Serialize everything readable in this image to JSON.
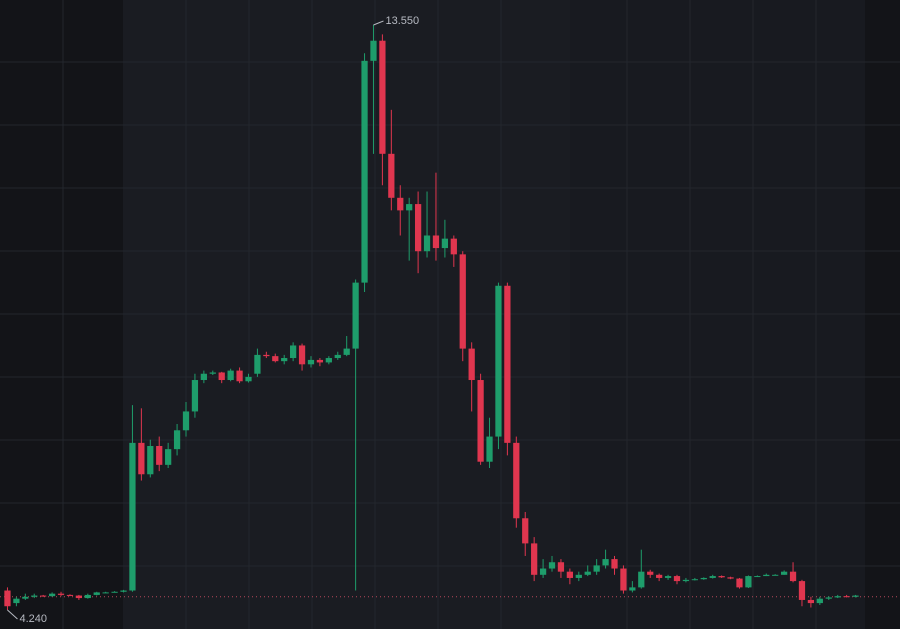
{
  "chart_data": {
    "type": "candlestick",
    "up_color": "#1e9d6b",
    "down_color": "#e0364f",
    "reference_line": 4.45,
    "annotations": [
      {
        "value": 13.55,
        "label": "13.550"
      },
      {
        "value": 4.24,
        "label": "4.240"
      }
    ],
    "candles": [
      {
        "open": 4.55,
        "close": 4.3,
        "high": 4.6,
        "low": 4.24
      },
      {
        "open": 4.35,
        "close": 4.42,
        "high": 4.45,
        "low": 4.3
      },
      {
        "open": 4.42,
        "close": 4.45,
        "high": 4.5,
        "low": 4.4
      },
      {
        "open": 4.45,
        "close": 4.47,
        "high": 4.5,
        "low": 4.43
      },
      {
        "open": 4.47,
        "close": 4.46,
        "high": 4.48,
        "low": 4.45
      },
      {
        "open": 4.46,
        "close": 4.5,
        "high": 4.52,
        "low": 4.45
      },
      {
        "open": 4.5,
        "close": 4.48,
        "high": 4.53,
        "low": 4.46
      },
      {
        "open": 4.48,
        "close": 4.47,
        "high": 4.49,
        "low": 4.46
      },
      {
        "open": 4.47,
        "close": 4.43,
        "high": 4.48,
        "low": 4.4
      },
      {
        "open": 4.43,
        "close": 4.48,
        "high": 4.5,
        "low": 4.42
      },
      {
        "open": 4.48,
        "close": 4.52,
        "high": 4.53,
        "low": 4.47
      },
      {
        "open": 4.52,
        "close": 4.52,
        "high": 4.53,
        "low": 4.51
      },
      {
        "open": 4.52,
        "close": 4.53,
        "high": 4.54,
        "low": 4.52
      },
      {
        "open": 4.53,
        "close": 4.55,
        "high": 4.56,
        "low": 4.52
      },
      {
        "open": 4.55,
        "close": 6.9,
        "high": 7.5,
        "low": 4.53
      },
      {
        "open": 6.9,
        "close": 6.4,
        "high": 7.45,
        "low": 6.3
      },
      {
        "open": 6.4,
        "close": 6.85,
        "high": 6.95,
        "low": 6.35
      },
      {
        "open": 6.85,
        "close": 6.55,
        "high": 7.0,
        "low": 6.45
      },
      {
        "open": 6.55,
        "close": 6.8,
        "high": 6.9,
        "low": 6.5
      },
      {
        "open": 6.8,
        "close": 7.1,
        "high": 7.2,
        "low": 6.7
      },
      {
        "open": 7.1,
        "close": 7.4,
        "high": 7.55,
        "low": 7.0
      },
      {
        "open": 7.4,
        "close": 7.9,
        "high": 8.0,
        "low": 7.3
      },
      {
        "open": 7.9,
        "close": 8.0,
        "high": 8.05,
        "low": 7.85
      },
      {
        "open": 8.0,
        "close": 8.02,
        "high": 8.05,
        "low": 7.98
      },
      {
        "open": 8.02,
        "close": 7.9,
        "high": 8.03,
        "low": 7.85
      },
      {
        "open": 7.9,
        "close": 8.05,
        "high": 8.08,
        "low": 7.88
      },
      {
        "open": 8.05,
        "close": 7.88,
        "high": 8.1,
        "low": 7.85
      },
      {
        "open": 7.88,
        "close": 7.95,
        "high": 8.0,
        "low": 7.86
      },
      {
        "open": 8.0,
        "close": 8.3,
        "high": 8.4,
        "low": 7.95
      },
      {
        "open": 8.3,
        "close": 8.28,
        "high": 8.35,
        "low": 8.25
      },
      {
        "open": 8.28,
        "close": 8.2,
        "high": 8.32,
        "low": 8.18
      },
      {
        "open": 8.2,
        "close": 8.25,
        "high": 8.3,
        "low": 8.15
      },
      {
        "open": 8.25,
        "close": 8.45,
        "high": 8.5,
        "low": 8.2
      },
      {
        "open": 8.45,
        "close": 8.15,
        "high": 8.48,
        "low": 8.05
      },
      {
        "open": 8.15,
        "close": 8.22,
        "high": 8.28,
        "low": 8.1
      },
      {
        "open": 8.22,
        "close": 8.18,
        "high": 8.25,
        "low": 8.12
      },
      {
        "open": 8.18,
        "close": 8.25,
        "high": 8.28,
        "low": 8.15
      },
      {
        "open": 8.25,
        "close": 8.3,
        "high": 8.35,
        "low": 8.22
      },
      {
        "open": 8.3,
        "close": 8.4,
        "high": 8.6,
        "low": 8.28
      },
      {
        "open": 8.4,
        "close": 9.45,
        "high": 9.5,
        "low": 4.55
      },
      {
        "open": 9.45,
        "close": 12.98,
        "high": 13.1,
        "low": 9.3
      },
      {
        "open": 12.98,
        "close": 13.3,
        "high": 13.55,
        "low": 11.5
      },
      {
        "open": 13.3,
        "close": 11.5,
        "high": 13.4,
        "low": 11.0
      },
      {
        "open": 11.5,
        "close": 10.8,
        "high": 12.2,
        "low": 10.6
      },
      {
        "open": 10.8,
        "close": 10.6,
        "high": 11.0,
        "low": 10.2
      },
      {
        "open": 10.6,
        "close": 10.7,
        "high": 10.8,
        "low": 9.8
      },
      {
        "open": 10.7,
        "close": 9.95,
        "high": 10.9,
        "low": 9.6
      },
      {
        "open": 9.95,
        "close": 10.2,
        "high": 10.9,
        "low": 9.85
      },
      {
        "open": 10.2,
        "close": 10.0,
        "high": 11.2,
        "low": 9.8
      },
      {
        "open": 10.0,
        "close": 10.15,
        "high": 10.45,
        "low": 9.85
      },
      {
        "open": 10.15,
        "close": 9.9,
        "high": 10.2,
        "low": 9.7
      },
      {
        "open": 9.9,
        "close": 8.4,
        "high": 9.95,
        "low": 8.2
      },
      {
        "open": 8.4,
        "close": 7.9,
        "high": 8.5,
        "low": 7.4
      },
      {
        "open": 7.9,
        "close": 6.6,
        "high": 8.0,
        "low": 6.55
      },
      {
        "open": 6.6,
        "close": 7.0,
        "high": 7.3,
        "low": 6.5
      },
      {
        "open": 7.0,
        "close": 9.4,
        "high": 9.45,
        "low": 6.8
      },
      {
        "open": 9.4,
        "close": 6.9,
        "high": 9.45,
        "low": 6.7
      },
      {
        "open": 6.9,
        "close": 5.7,
        "high": 7.0,
        "low": 5.55
      },
      {
        "open": 5.7,
        "close": 5.3,
        "high": 5.8,
        "low": 5.1
      },
      {
        "open": 5.3,
        "close": 4.8,
        "high": 5.4,
        "low": 4.7
      },
      {
        "open": 4.8,
        "close": 4.9,
        "high": 5.05,
        "low": 4.75
      },
      {
        "open": 4.9,
        "close": 5.0,
        "high": 5.1,
        "low": 4.85
      },
      {
        "open": 5.0,
        "close": 4.85,
        "high": 5.05,
        "low": 4.75
      },
      {
        "open": 4.85,
        "close": 4.75,
        "high": 4.9,
        "low": 4.65
      },
      {
        "open": 4.75,
        "close": 4.8,
        "high": 4.85,
        "low": 4.7
      },
      {
        "open": 4.8,
        "close": 4.85,
        "high": 4.95,
        "low": 4.78
      },
      {
        "open": 4.85,
        "close": 4.95,
        "high": 5.05,
        "low": 4.8
      },
      {
        "open": 4.95,
        "close": 5.05,
        "high": 5.2,
        "low": 4.9
      },
      {
        "open": 5.05,
        "close": 4.9,
        "high": 5.1,
        "low": 4.8
      },
      {
        "open": 4.9,
        "close": 4.55,
        "high": 4.95,
        "low": 4.5
      },
      {
        "open": 4.55,
        "close": 4.6,
        "high": 4.7,
        "low": 4.52
      },
      {
        "open": 4.6,
        "close": 4.85,
        "high": 5.2,
        "low": 4.58
      },
      {
        "open": 4.85,
        "close": 4.8,
        "high": 4.88,
        "low": 4.75
      },
      {
        "open": 4.8,
        "close": 4.75,
        "high": 4.82,
        "low": 4.7
      },
      {
        "open": 4.75,
        "close": 4.78,
        "high": 4.8,
        "low": 4.72
      },
      {
        "open": 4.78,
        "close": 4.7,
        "high": 4.8,
        "low": 4.65
      },
      {
        "open": 4.7,
        "close": 4.72,
        "high": 4.75,
        "low": 4.68
      },
      {
        "open": 4.72,
        "close": 4.73,
        "high": 4.75,
        "low": 4.71
      },
      {
        "open": 4.73,
        "close": 4.75,
        "high": 4.76,
        "low": 4.72
      },
      {
        "open": 4.75,
        "close": 4.78,
        "high": 4.8,
        "low": 4.74
      },
      {
        "open": 4.78,
        "close": 4.76,
        "high": 4.79,
        "low": 4.75
      },
      {
        "open": 4.76,
        "close": 4.74,
        "high": 4.77,
        "low": 4.73
      },
      {
        "open": 4.74,
        "close": 4.6,
        "high": 4.75,
        "low": 4.58
      },
      {
        "open": 4.6,
        "close": 4.78,
        "high": 4.79,
        "low": 4.59
      },
      {
        "open": 4.78,
        "close": 4.78,
        "high": 4.79,
        "low": 4.77
      },
      {
        "open": 4.78,
        "close": 4.8,
        "high": 4.82,
        "low": 4.78
      },
      {
        "open": 4.8,
        "close": 4.8,
        "high": 4.81,
        "low": 4.79
      },
      {
        "open": 4.8,
        "close": 4.85,
        "high": 4.87,
        "low": 4.8
      },
      {
        "open": 4.85,
        "close": 4.7,
        "high": 5.0,
        "low": 4.68
      },
      {
        "open": 4.7,
        "close": 4.4,
        "high": 4.72,
        "low": 4.3
      },
      {
        "open": 4.4,
        "close": 4.35,
        "high": 4.45,
        "low": 4.28
      },
      {
        "open": 4.35,
        "close": 4.42,
        "high": 4.45,
        "low": 4.32
      },
      {
        "open": 4.42,
        "close": 4.44,
        "high": 4.46,
        "low": 4.4
      },
      {
        "open": 4.44,
        "close": 4.46,
        "high": 4.48,
        "low": 4.43
      },
      {
        "open": 4.46,
        "close": 4.45,
        "high": 4.48,
        "low": 4.44
      },
      {
        "open": 4.45,
        "close": 4.47,
        "high": 4.48,
        "low": 4.44
      }
    ]
  }
}
